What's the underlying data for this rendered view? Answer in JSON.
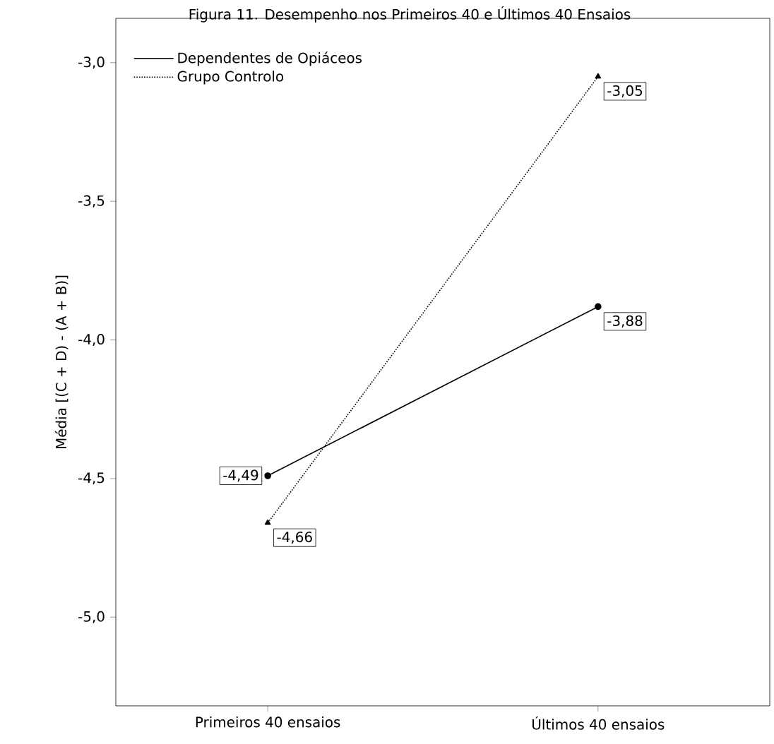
{
  "chart_data": {
    "type": "line",
    "title": "Figura 11. Desempenho nos Primeiros 40 e Últimos 40 Ensaios",
    "ylabel": "Média [(C + D) - (A + B)]",
    "categories": [
      "Primeiros 40 ensaios",
      "Últimos 40 ensaios"
    ],
    "ylim": [
      -5.32,
      -2.84
    ],
    "yticks": [
      {
        "value": -5.0,
        "label": "-5,0"
      },
      {
        "value": -4.5,
        "label": "-4,5"
      },
      {
        "value": -4.0,
        "label": "-4,0"
      },
      {
        "value": -3.5,
        "label": "-3,5"
      },
      {
        "value": -3.0,
        "label": "-3,0"
      }
    ],
    "legend": "top left",
    "grid": false,
    "series": [
      {
        "name": "Dependentes de Opiáceos",
        "color": "#000000",
        "values": [
          -4.49,
          -3.88
        ],
        "value_labels": [
          "-4,49",
          "-3,88"
        ],
        "marker": "circle",
        "line_style": "solid"
      },
      {
        "name": "Grupo Controlo",
        "color": "#000000",
        "values": [
          -4.66,
          -3.05
        ],
        "value_labels": [
          "-4,66",
          "-3,05"
        ],
        "marker": "triangle",
        "line_style": "dotted"
      }
    ]
  }
}
